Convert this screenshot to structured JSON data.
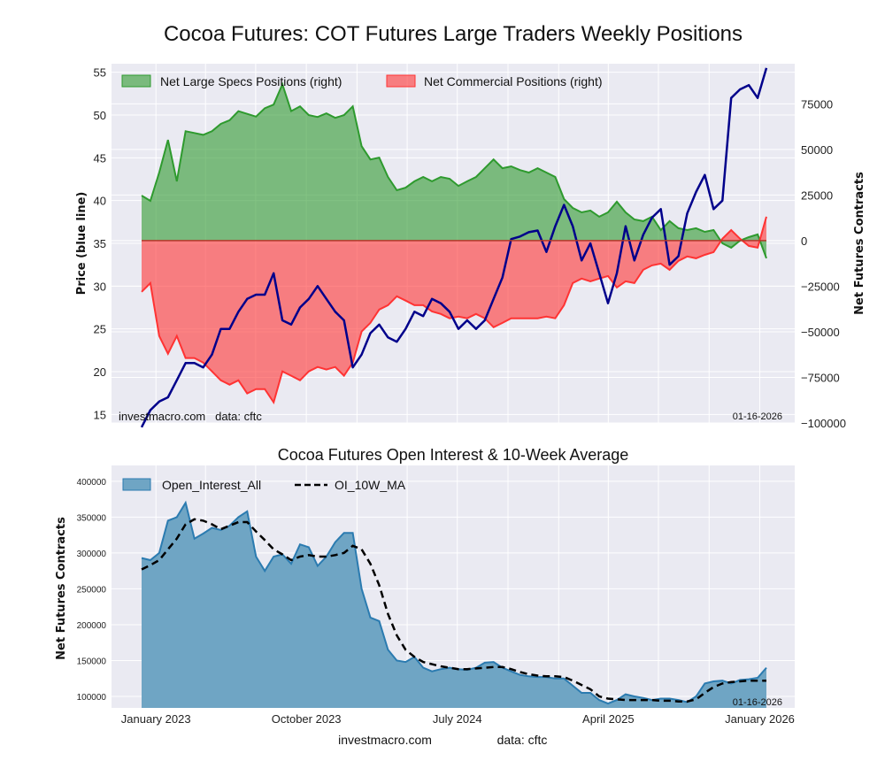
{
  "footer": {
    "site": "investmacro.com",
    "source": "data: cftc"
  },
  "chart_data": [
    {
      "type": "line",
      "title": "Cocoa Futures: COT Futures Large Traders Weekly Positions",
      "ylabel": "Price (blue line)",
      "ylabel_right": "Net Futures Contracts",
      "watermark": "investmacro.com   data: cftc",
      "date_label": "01-16-2026",
      "x_range": [
        "2022-12-06",
        "2026-01-13"
      ],
      "ylim": [
        14,
        56
      ],
      "ylim_right": [
        -100000,
        97000
      ],
      "yticks": [
        15,
        20,
        25,
        30,
        35,
        40,
        45,
        50,
        55
      ],
      "yticks_right": [
        -100000,
        -75000,
        -50000,
        -25000,
        0,
        25000,
        50000,
        75000
      ],
      "xgrid_dates": [
        "2023-01-01",
        "2023-04-01",
        "2023-07-01",
        "2023-10-01",
        "2024-01-01",
        "2024-04-01",
        "2024-07-01",
        "2024-10-01",
        "2025-01-01",
        "2025-04-01",
        "2025-07-01",
        "2025-10-01",
        "2026-01-01"
      ],
      "grid": true,
      "legend_position": "top-left",
      "series": [
        {
          "name": "Net Large Specs Positions (right)",
          "type": "area",
          "axis": "right",
          "color": "#2e9a2e",
          "values": [
            24700,
            21800,
            37300,
            55200,
            32500,
            60000,
            59000,
            58000,
            60000,
            64000,
            66000,
            71000,
            69500,
            68000,
            72600,
            74600,
            85700,
            71000,
            73600,
            68800,
            67800,
            69800,
            67300,
            68800,
            73600,
            51800,
            44500,
            45500,
            34900,
            27600,
            29000,
            32500,
            34900,
            32500,
            34900,
            33900,
            30000,
            32500,
            34900,
            39700,
            44500,
            39700,
            40700,
            38700,
            37300,
            39700,
            37300,
            34900,
            22800,
            17900,
            15500,
            16500,
            13100,
            15500,
            21300,
            15500,
            11600,
            10700,
            13100,
            5800,
            10700,
            6800,
            5800,
            6800,
            4800,
            5800,
            -1500,
            -3900,
            0,
            1900,
            3400,
            -9700
          ]
        },
        {
          "name": "Net Commercial Positions (right)",
          "type": "area",
          "axis": "right",
          "color": "#ff3333",
          "values": [
            -28100,
            -23300,
            -52300,
            -62000,
            -52300,
            -64400,
            -64400,
            -66900,
            -71700,
            -76600,
            -79000,
            -76600,
            -83800,
            -81400,
            -81400,
            -88700,
            -71700,
            -74100,
            -76600,
            -71700,
            -69300,
            -70700,
            -69300,
            -74100,
            -66900,
            -49900,
            -45100,
            -37800,
            -35400,
            -30500,
            -32900,
            -35400,
            -35400,
            -38800,
            -40200,
            -42600,
            -41700,
            -42600,
            -40200,
            -42600,
            -47500,
            -45100,
            -42600,
            -42600,
            -42600,
            -42600,
            -41700,
            -42600,
            -35400,
            -23300,
            -20800,
            -22300,
            -20800,
            -19400,
            -25700,
            -22300,
            -23300,
            -16000,
            -13600,
            -12600,
            -16000,
            -11100,
            -8700,
            -9700,
            -7800,
            -6300,
            1000,
            5800,
            1000,
            -2900,
            -3900,
            13100
          ]
        },
        {
          "name": "Price",
          "type": "line",
          "axis": "left",
          "color": "#00008b",
          "values": [
            13.5,
            15.5,
            16.5,
            17,
            19,
            21,
            21,
            20.5,
            22,
            25,
            25,
            27,
            28.5,
            29,
            29,
            31.5,
            26,
            25.5,
            27.5,
            28.5,
            30,
            28.5,
            27,
            26,
            20.5,
            22,
            24.5,
            25.5,
            24,
            23.5,
            25,
            27,
            26.5,
            28.5,
            28,
            27,
            25,
            26,
            25,
            26,
            28.5,
            31,
            35.5,
            35.8,
            36.3,
            36.5,
            34,
            37,
            39.5,
            37,
            33,
            35,
            31.5,
            28,
            31.5,
            37,
            33,
            36,
            38,
            39,
            32.5,
            33.5,
            38.5,
            41,
            43,
            39,
            40,
            52,
            53,
            53.5,
            52,
            55.5
          ]
        }
      ]
    },
    {
      "type": "area",
      "title": "Cocoa Futures Open Interest & 10-Week Average",
      "ylabel": "Net Futures Contracts",
      "date_label": "01-16-2026",
      "x_range": [
        "2022-12-06",
        "2026-01-13"
      ],
      "ylim": [
        84000,
        422000
      ],
      "yticks": [
        100000,
        150000,
        200000,
        250000,
        300000,
        350000,
        400000
      ],
      "xticks": [
        {
          "date": "2023-01-01",
          "label": "January 2023"
        },
        {
          "date": "2023-10-01",
          "label": "October 2023"
        },
        {
          "date": "2024-07-01",
          "label": "July 2024"
        },
        {
          "date": "2025-04-01",
          "label": "April 2025"
        },
        {
          "date": "2026-01-01",
          "label": "January 2026"
        }
      ],
      "xgrid_dates": [
        "2023-01-01",
        "2023-04-01",
        "2023-07-01",
        "2023-10-01",
        "2024-01-01",
        "2024-04-01",
        "2024-07-01",
        "2024-10-01",
        "2025-01-01",
        "2025-04-01",
        "2025-07-01",
        "2025-10-01",
        "2026-01-01"
      ],
      "grid": true,
      "legend_position": "top-left",
      "series": [
        {
          "name": "Open_Interest_All",
          "type": "area",
          "color": "#2b7bb0",
          "values": [
            293000,
            290000,
            300000,
            345000,
            350000,
            370000,
            320000,
            327000,
            335000,
            332000,
            338000,
            350000,
            358000,
            295000,
            275000,
            295000,
            298000,
            285000,
            312000,
            308000,
            282000,
            295000,
            315000,
            328000,
            328000,
            250000,
            210000,
            205000,
            165000,
            150000,
            148000,
            155000,
            140000,
            135000,
            138000,
            140000,
            138000,
            137000,
            140000,
            147000,
            148000,
            140000,
            135000,
            130000,
            128000,
            127000,
            127000,
            125000,
            125000,
            115000,
            105000,
            105000,
            95000,
            90000,
            95000,
            103000,
            100000,
            98000,
            95000,
            97000,
            97000,
            95000,
            92000,
            100000,
            118000,
            121000,
            122000,
            118000,
            123000,
            124000,
            126000,
            140000
          ]
        },
        {
          "name": "OI_10W_MA",
          "type": "line",
          "style": "dashed",
          "color": "#000000",
          "values": [
            277000,
            283000,
            290000,
            305000,
            320000,
            340000,
            347000,
            345000,
            340000,
            333000,
            338000,
            343000,
            343000,
            330000,
            318000,
            305000,
            298000,
            290000,
            295000,
            297000,
            295000,
            295000,
            297000,
            300000,
            310000,
            305000,
            285000,
            255000,
            215000,
            185000,
            165000,
            155000,
            148000,
            145000,
            142000,
            140000,
            138000,
            138000,
            139000,
            140000,
            141000,
            141000,
            138000,
            134000,
            131000,
            129000,
            128000,
            128000,
            127000,
            122000,
            116000,
            110000,
            100000,
            97000,
            96000,
            95000,
            95000,
            95000,
            95000,
            94000,
            94000,
            93000,
            93000,
            96000,
            105000,
            113000,
            118000,
            120000,
            121000,
            122000,
            122000,
            122000
          ]
        }
      ]
    }
  ]
}
